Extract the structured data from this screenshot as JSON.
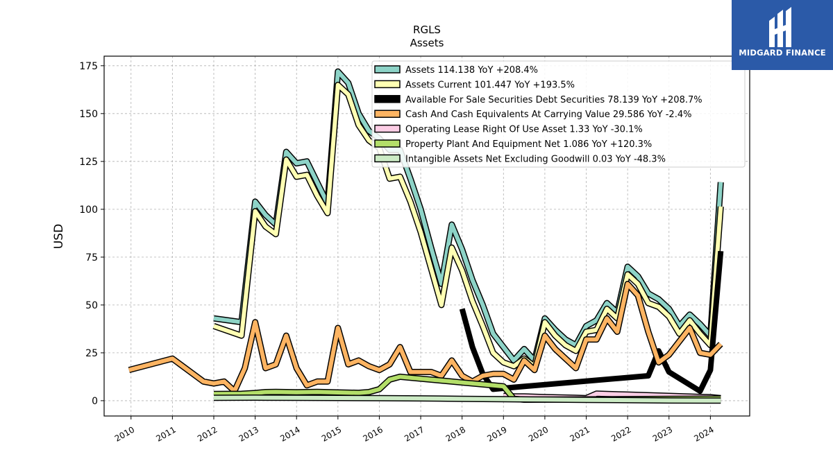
{
  "logo": {
    "name": "MIDGARD FINANCE"
  },
  "chart_data": {
    "type": "line",
    "title": "RGLS",
    "subtitle": "Assets",
    "ylabel": "USD",
    "xlabel": "",
    "ylim": [
      -8,
      180
    ],
    "xlim": [
      2009.35,
      2024.95
    ],
    "yticks": [
      0,
      25,
      50,
      75,
      100,
      125,
      150,
      175
    ],
    "xticks": [
      "2010",
      "2011",
      "2012",
      "2013",
      "2014",
      "2015",
      "2016",
      "2017",
      "2018",
      "2019",
      "2020",
      "2021",
      "2022",
      "2023",
      "2024"
    ],
    "grid": true,
    "legend_position": "top-right",
    "series": [
      {
        "name": "Assets",
        "legend": "Assets  114.138 YoY +208.4%",
        "color": "#8dd3c7",
        "width": 6,
        "points": [
          [
            2012.0,
            43
          ],
          [
            2012.67,
            41
          ],
          [
            2013.0,
            104
          ],
          [
            2013.25,
            97
          ],
          [
            2013.5,
            92
          ],
          [
            2013.75,
            130
          ],
          [
            2014.0,
            124
          ],
          [
            2014.25,
            125
          ],
          [
            2014.5,
            114
          ],
          [
            2014.75,
            103
          ],
          [
            2015.0,
            172
          ],
          [
            2015.25,
            166
          ],
          [
            2015.5,
            150
          ],
          [
            2015.75,
            141
          ],
          [
            2016.0,
            137
          ],
          [
            2016.25,
            131
          ],
          [
            2016.5,
            131
          ],
          [
            2016.75,
            116
          ],
          [
            2017.0,
            100
          ],
          [
            2017.25,
            80
          ],
          [
            2017.5,
            61
          ],
          [
            2017.75,
            92
          ],
          [
            2018.0,
            79
          ],
          [
            2018.25,
            63
          ],
          [
            2018.5,
            50
          ],
          [
            2018.75,
            35
          ],
          [
            2019.0,
            28
          ],
          [
            2019.25,
            21
          ],
          [
            2019.5,
            27
          ],
          [
            2019.75,
            21
          ],
          [
            2020.0,
            43
          ],
          [
            2020.25,
            37
          ],
          [
            2020.5,
            32
          ],
          [
            2020.75,
            29
          ],
          [
            2021.0,
            39
          ],
          [
            2021.25,
            42
          ],
          [
            2021.5,
            51
          ],
          [
            2021.75,
            46
          ],
          [
            2022.0,
            70
          ],
          [
            2022.25,
            65
          ],
          [
            2022.5,
            56
          ],
          [
            2022.75,
            53
          ],
          [
            2023.0,
            48
          ],
          [
            2023.25,
            39
          ],
          [
            2023.5,
            45
          ],
          [
            2023.75,
            40
          ],
          [
            2024.0,
            34
          ],
          [
            2024.25,
            114.138
          ]
        ]
      },
      {
        "name": "Assets Current",
        "legend": "Assets Current  101.447 YoY +193.5%",
        "color": "#ffffb3",
        "width": 6,
        "points": [
          [
            2012.0,
            39
          ],
          [
            2012.67,
            34
          ],
          [
            2013.0,
            99
          ],
          [
            2013.25,
            91
          ],
          [
            2013.5,
            87
          ],
          [
            2013.75,
            126
          ],
          [
            2014.0,
            117
          ],
          [
            2014.25,
            118
          ],
          [
            2014.5,
            107
          ],
          [
            2014.75,
            98
          ],
          [
            2015.0,
            165
          ],
          [
            2015.25,
            160
          ],
          [
            2015.5,
            144
          ],
          [
            2015.75,
            136
          ],
          [
            2016.0,
            132
          ],
          [
            2016.25,
            116
          ],
          [
            2016.5,
            117
          ],
          [
            2016.75,
            104
          ],
          [
            2017.0,
            88
          ],
          [
            2017.25,
            69
          ],
          [
            2017.5,
            50
          ],
          [
            2017.75,
            80
          ],
          [
            2018.0,
            68
          ],
          [
            2018.25,
            52
          ],
          [
            2018.5,
            39
          ],
          [
            2018.75,
            25
          ],
          [
            2019.0,
            20
          ],
          [
            2019.25,
            18
          ],
          [
            2019.5,
            22
          ],
          [
            2019.75,
            18
          ],
          [
            2020.0,
            41
          ],
          [
            2020.25,
            34
          ],
          [
            2020.5,
            29
          ],
          [
            2020.75,
            26
          ],
          [
            2021.0,
            36
          ],
          [
            2021.25,
            37
          ],
          [
            2021.5,
            48
          ],
          [
            2021.75,
            43
          ],
          [
            2022.0,
            66
          ],
          [
            2022.25,
            61
          ],
          [
            2022.5,
            51
          ],
          [
            2022.75,
            49
          ],
          [
            2023.0,
            44
          ],
          [
            2023.25,
            35
          ],
          [
            2023.5,
            42
          ],
          [
            2023.75,
            35
          ],
          [
            2024.0,
            29
          ],
          [
            2024.25,
            101.447
          ]
        ]
      },
      {
        "name": "Available For Sale Securities Debt Securities",
        "legend": "Available For Sale Securities Debt Securities  78.139 YoY +208.7%",
        "color": "#000000",
        "width": 8,
        "points": [
          [
            2018.0,
            48
          ],
          [
            2018.25,
            28
          ],
          [
            2018.5,
            14
          ],
          [
            2018.75,
            6
          ],
          [
            2019.25,
            7
          ],
          [
            2022.5,
            13
          ],
          [
            2022.75,
            26
          ],
          [
            2023.0,
            15
          ],
          [
            2023.75,
            5
          ],
          [
            2024.0,
            16
          ],
          [
            2024.25,
            78.139
          ]
        ]
      },
      {
        "name": "Cash And Cash Equivalents At Carrying Value",
        "legend": "Cash And Cash Equivalents At Carrying Value  29.586 YoY -2.4%",
        "color": "#fdb462",
        "width": 6,
        "points": [
          [
            2009.95,
            16
          ],
          [
            2011.0,
            22
          ],
          [
            2011.75,
            10
          ],
          [
            2012.0,
            9
          ],
          [
            2012.25,
            10
          ],
          [
            2012.5,
            5
          ],
          [
            2012.75,
            17
          ],
          [
            2013.0,
            41
          ],
          [
            2013.25,
            17
          ],
          [
            2013.5,
            19
          ],
          [
            2013.75,
            34
          ],
          [
            2014.0,
            17
          ],
          [
            2014.25,
            8
          ],
          [
            2014.5,
            10
          ],
          [
            2014.75,
            10
          ],
          [
            2015.0,
            38
          ],
          [
            2015.25,
            19
          ],
          [
            2015.5,
            21
          ],
          [
            2015.75,
            18
          ],
          [
            2016.0,
            16
          ],
          [
            2016.25,
            19
          ],
          [
            2016.5,
            28
          ],
          [
            2016.75,
            15
          ],
          [
            2017.0,
            15
          ],
          [
            2017.25,
            15
          ],
          [
            2017.5,
            13
          ],
          [
            2017.75,
            21
          ],
          [
            2018.0,
            13
          ],
          [
            2018.25,
            10
          ],
          [
            2018.5,
            13
          ],
          [
            2018.75,
            14
          ],
          [
            2019.0,
            14
          ],
          [
            2019.25,
            11
          ],
          [
            2019.5,
            21
          ],
          [
            2019.75,
            16
          ],
          [
            2020.0,
            34
          ],
          [
            2020.25,
            27
          ],
          [
            2020.5,
            22
          ],
          [
            2020.75,
            17
          ],
          [
            2021.0,
            32
          ],
          [
            2021.25,
            32
          ],
          [
            2021.5,
            43
          ],
          [
            2021.75,
            36
          ],
          [
            2022.0,
            61
          ],
          [
            2022.25,
            55
          ],
          [
            2022.5,
            36
          ],
          [
            2022.75,
            20
          ],
          [
            2023.0,
            24
          ],
          [
            2023.25,
            31
          ],
          [
            2023.5,
            38
          ],
          [
            2023.75,
            25
          ],
          [
            2024.0,
            24
          ],
          [
            2024.25,
            29.586
          ]
        ]
      },
      {
        "name": "Operating Lease Right Of Use Asset",
        "legend": "Operating Lease Right Of Use Asset  1.33 YoY -30.1%",
        "color": "#fccde5",
        "width": 6,
        "points": [
          [
            2019.0,
            2.5
          ],
          [
            2019.25,
            2.3
          ],
          [
            2019.5,
            2.2
          ],
          [
            2020.0,
            1.9
          ],
          [
            2020.75,
            1.5
          ],
          [
            2021.0,
            1.3
          ],
          [
            2021.25,
            3.7
          ],
          [
            2021.5,
            3.5
          ],
          [
            2022.0,
            3.2
          ],
          [
            2023.0,
            2.5
          ],
          [
            2024.0,
            1.8
          ],
          [
            2024.25,
            1.33
          ]
        ]
      },
      {
        "name": "Property Plant And Equipment Net",
        "legend": "Property Plant And Equipment Net  1.086 YoY +120.3%",
        "color": "#b3de69",
        "width": 6,
        "points": [
          [
            2012.0,
            3.5
          ],
          [
            2012.67,
            3.6
          ],
          [
            2013.0,
            4
          ],
          [
            2013.25,
            4.5
          ],
          [
            2013.5,
            4.6
          ],
          [
            2014.0,
            4.4
          ],
          [
            2014.5,
            4.6
          ],
          [
            2015.0,
            4.3
          ],
          [
            2015.5,
            4.1
          ],
          [
            2015.75,
            4.5
          ],
          [
            2016.0,
            6
          ],
          [
            2016.25,
            11
          ],
          [
            2016.5,
            12.5
          ],
          [
            2016.75,
            12
          ],
          [
            2017.0,
            11.5
          ],
          [
            2017.5,
            10.5
          ],
          [
            2018.0,
            9.5
          ],
          [
            2018.5,
            8.5
          ],
          [
            2019.0,
            7.5
          ],
          [
            2019.25,
            1
          ],
          [
            2019.5,
            0.5
          ],
          [
            2024.25,
            1.086
          ]
        ]
      },
      {
        "name": "Intangible Assets Net Excluding Goodwill",
        "legend": "Intangible Assets Net Excluding Goodwill  0.03 YoY -48.3%",
        "color": "#ccebc5",
        "width": 6,
        "points": [
          [
            2012.0,
            1.5
          ],
          [
            2013.0,
            1.6
          ],
          [
            2014.0,
            1.5
          ],
          [
            2015.0,
            1.4
          ],
          [
            2016.0,
            1.3
          ],
          [
            2017.0,
            1.2
          ],
          [
            2018.0,
            1.0
          ],
          [
            2019.0,
            0.8
          ],
          [
            2020.0,
            0.6
          ],
          [
            2021.0,
            0.4
          ],
          [
            2022.0,
            0.3
          ],
          [
            2023.0,
            0.1
          ],
          [
            2024.0,
            0.05
          ],
          [
            2024.25,
            0.03
          ]
        ]
      }
    ]
  }
}
